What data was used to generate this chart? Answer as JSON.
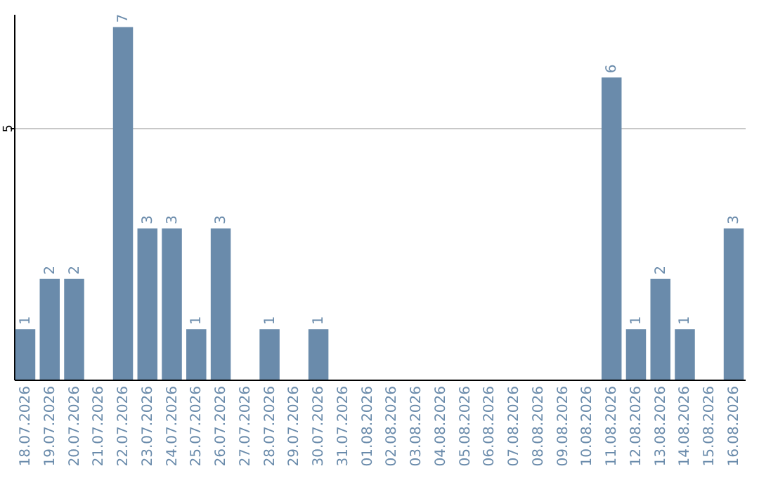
{
  "chart_data": {
    "type": "bar",
    "categories": [
      "18.07.2026",
      "19.07.2026",
      "20.07.2026",
      "21.07.2026",
      "22.07.2026",
      "23.07.2026",
      "24.07.2026",
      "25.07.2026",
      "26.07.2026",
      "27.07.2026",
      "28.07.2026",
      "29.07.2026",
      "30.07.2026",
      "31.07.2026",
      "01.08.2026",
      "02.08.2026",
      "03.08.2026",
      "04.08.2026",
      "05.08.2026",
      "06.08.2026",
      "07.08.2026",
      "08.08.2026",
      "09.08.2026",
      "10.08.2026",
      "11.08.2026",
      "12.08.2026",
      "13.08.2026",
      "14.08.2026",
      "15.08.2026",
      "16.08.2026"
    ],
    "values": [
      1,
      2,
      2,
      0,
      7,
      3,
      3,
      1,
      3,
      0,
      1,
      0,
      1,
      0,
      0,
      0,
      0,
      0,
      0,
      0,
      0,
      0,
      0,
      0,
      6,
      1,
      2,
      1,
      0,
      3
    ],
    "value_labels": [
      "1",
      "2",
      "2",
      null,
      "7",
      "3",
      "3",
      "1",
      "3",
      null,
      "1",
      null,
      "1",
      null,
      null,
      null,
      null,
      null,
      null,
      null,
      null,
      null,
      null,
      null,
      "6",
      "1",
      "2",
      "1",
      null,
      "3"
    ],
    "color": "#6a8bab",
    "ylim": [
      0,
      7.26
    ],
    "yticks": [
      5
    ],
    "grid": "y"
  }
}
